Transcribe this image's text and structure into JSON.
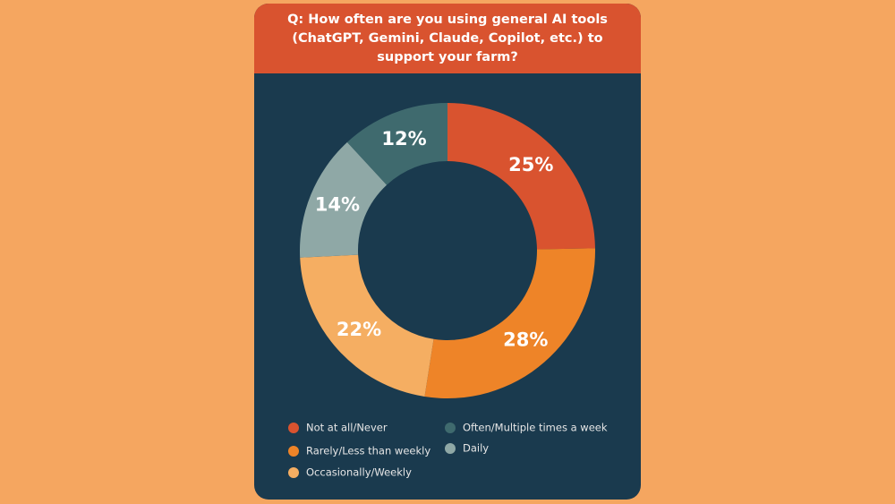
{
  "chart_data": {
    "type": "donut",
    "title": "Q: How often are you using general AI tools (ChatGPT, Gemini, Claude, Copilot, etc.) to support your farm?",
    "series": [
      {
        "name": "Not at all/Never",
        "color": "#d9532f",
        "values": [
          25
        ],
        "value_labels": [
          "25%"
        ]
      },
      {
        "name": "Rarely/Less than weekly",
        "color": "#ee8428",
        "values": [
          28
        ],
        "value_labels": [
          "28%"
        ]
      },
      {
        "name": "Occasionally/Weekly",
        "color": "#f5ae62",
        "values": [
          22
        ],
        "value_labels": [
          "22%"
        ]
      },
      {
        "name": "Often/Multiple times a week",
        "color": "#3f6a6e",
        "values": [
          12
        ],
        "value_labels": [
          "12%"
        ]
      },
      {
        "name": "Daily",
        "color": "#8fa8a6",
        "values": [
          14
        ],
        "value_labels": [
          "14%"
        ]
      }
    ]
  }
}
